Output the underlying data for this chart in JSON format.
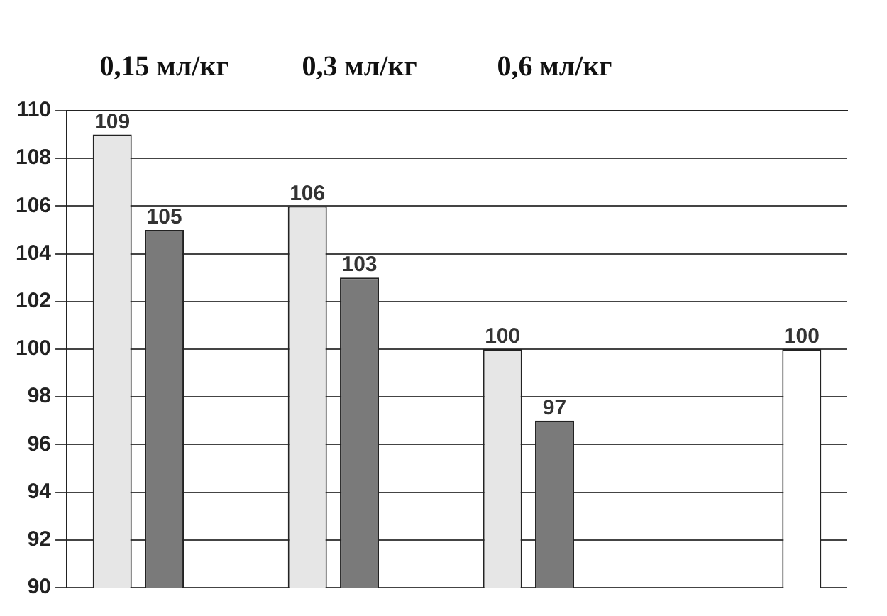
{
  "chart_data": {
    "type": "bar",
    "categories": [
      "0,15 мл/кг",
      "0,3 мл/кг",
      "0,6 мл/кг",
      null
    ],
    "series": [
      {
        "color": "#e6e6e6",
        "values": [
          109,
          106,
          100,
          null
        ]
      },
      {
        "color": "#7a7a7a",
        "values": [
          105,
          103,
          97,
          null
        ]
      },
      {
        "color": "#ffffff",
        "values": [
          null,
          null,
          null,
          100
        ]
      }
    ],
    "ylim": [
      90,
      110
    ],
    "yticks": [
      90,
      92,
      94,
      96,
      98,
      100,
      102,
      104,
      106,
      108,
      110
    ],
    "grid": "y",
    "data_labels": true,
    "legend": false
  }
}
